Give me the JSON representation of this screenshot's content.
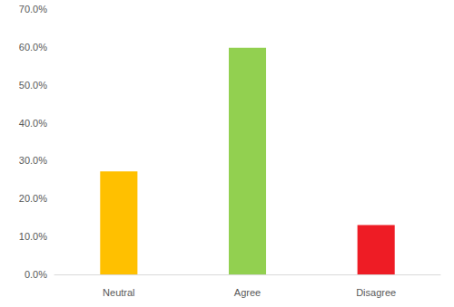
{
  "chart_data": {
    "type": "bar",
    "categories": [
      "Neutral",
      "Agree",
      "Disagree"
    ],
    "values": [
      27.2,
      59.8,
      13.0
    ],
    "colors": [
      "#ffc000",
      "#92d050",
      "#ee1c25"
    ],
    "ylim": [
      0,
      70
    ],
    "yticks": [
      {
        "value": 0,
        "label": "0.0%"
      },
      {
        "value": 10,
        "label": "10.0%"
      },
      {
        "value": 20,
        "label": "20.0%"
      },
      {
        "value": 30,
        "label": "30.0%"
      },
      {
        "value": 40,
        "label": "40.0%"
      },
      {
        "value": 50,
        "label": "50.0%"
      },
      {
        "value": 60,
        "label": "60.0%"
      },
      {
        "value": 70,
        "label": "70.0%"
      }
    ],
    "grid": false
  }
}
